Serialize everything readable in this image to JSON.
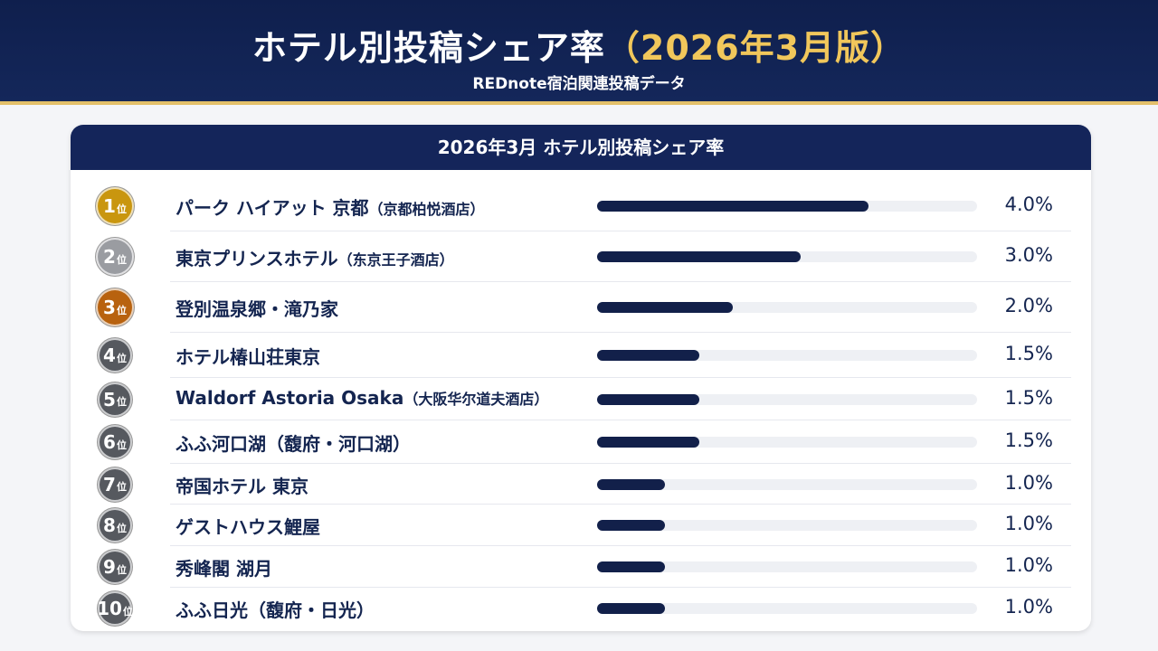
{
  "header": {
    "title_main": "ホテル別投稿シェア率",
    "title_highlight": "（2026年3月版）",
    "subtitle": "REDnote宿泊関連投稿データ"
  },
  "chart_data": {
    "type": "bar",
    "title": "2026年3月 ホテル別投稿シェア率",
    "xlim": [
      0,
      5.6
    ],
    "rank_suffix": "位",
    "items": [
      {
        "rank": "1",
        "name": "パーク ハイアット 京都",
        "sub": "（京都柏悦酒店）",
        "value": 4.0,
        "label": "4.0%",
        "color": "#c9960f"
      },
      {
        "rank": "2",
        "name": "東京プリンスホテル",
        "sub": "（东京王子酒店）",
        "value": 3.0,
        "label": "3.0%",
        "color": "#9a9ca1"
      },
      {
        "rank": "3",
        "name": "登別温泉郷・滝乃家",
        "sub": "",
        "value": 2.0,
        "label": "2.0%",
        "color": "#b8620f"
      },
      {
        "rank": "4",
        "name": "ホテル椿山荘東京",
        "sub": "",
        "value": 1.5,
        "label": "1.5%",
        "color": "#56595f"
      },
      {
        "rank": "5",
        "name": "Waldorf Astoria Osaka",
        "sub": "（大阪华尔道夫酒店）",
        "value": 1.5,
        "label": "1.5%",
        "color": "#56595f"
      },
      {
        "rank": "6",
        "name": "ふふ河口湖（馥府・河口湖）",
        "sub": "",
        "value": 1.5,
        "label": "1.5%",
        "color": "#56595f"
      },
      {
        "rank": "7",
        "name": "帝国ホテル 東京",
        "sub": "",
        "value": 1.0,
        "label": "1.0%",
        "color": "#56595f"
      },
      {
        "rank": "8",
        "name": "ゲストハウス鯉屋",
        "sub": "",
        "value": 1.0,
        "label": "1.0%",
        "color": "#56595f"
      },
      {
        "rank": "9",
        "name": "秀峰閣 湖月",
        "sub": "",
        "value": 1.0,
        "label": "1.0%",
        "color": "#56595f"
      },
      {
        "rank": "10",
        "name": "ふふ日光（馥府・日光）",
        "sub": "",
        "value": 1.0,
        "label": "1.0%",
        "color": "#56595f"
      }
    ]
  }
}
